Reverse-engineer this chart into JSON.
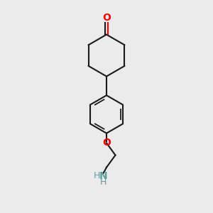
{
  "background_color": "#ebebeb",
  "line_color": "#1a1a1a",
  "oxygen_color": "#ff0000",
  "nitrogen_color": "#3333cc",
  "teal_color": "#5f9ea0",
  "line_width": 1.5,
  "figsize": [
    3.0,
    3.0
  ],
  "dpi": 100,
  "xlim": [
    -0.55,
    0.55
  ],
  "ylim": [
    -1.1,
    1.05
  ]
}
